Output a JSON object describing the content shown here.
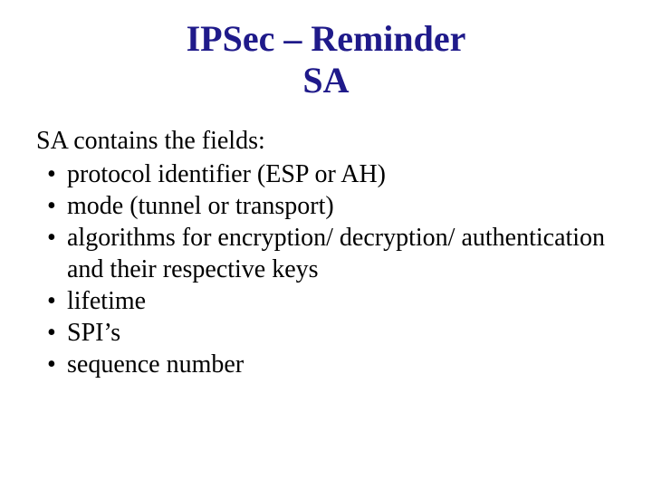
{
  "slide": {
    "title_line1": "IPSec – Reminder",
    "title_line2": "SA",
    "title_color": "#1f1a8a",
    "title_fontsize": 40,
    "body_color": "#000000",
    "body_fontsize": 28,
    "background_color": "#ffffff",
    "intro": "SA contains the fields:",
    "bullets": [
      "protocol identifier (ESP or AH)",
      "mode (tunnel or transport)",
      "algorithms for encryption/ decryption/ authentication and their respective keys",
      "lifetime",
      "SPI’s",
      "sequence number"
    ]
  }
}
